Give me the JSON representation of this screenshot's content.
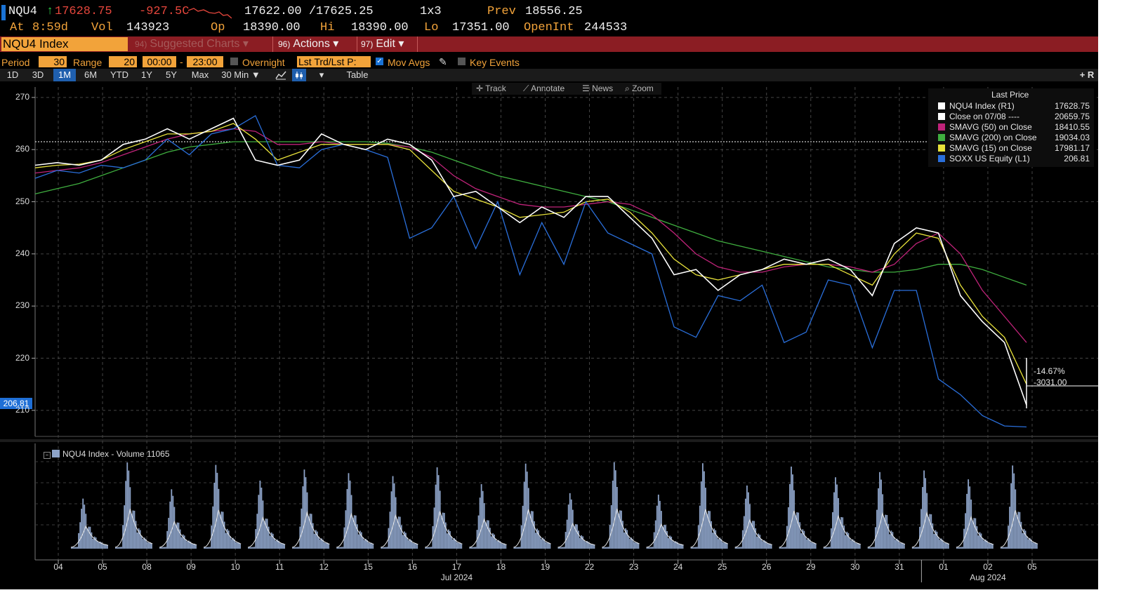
{
  "quote": {
    "ticker": "NQU4",
    "last": "17628.75",
    "change": "-927.5C",
    "bid_ask": "17622.00 /17625.25",
    "size": "1x3",
    "prev_label": "Prev",
    "prev": "18556.25",
    "at_label": "At",
    "at_time": "8:59d",
    "vol_label": "Vol",
    "vol": "143923",
    "op_label": "Op",
    "op": "18390.00",
    "hi_label": "Hi",
    "hi": "18390.00",
    "lo_label": "Lo",
    "lo": "17351.00",
    "oi_label": "OpenInt",
    "oi": "244533"
  },
  "toolbar": {
    "security": "NQU4 Index",
    "suggested_num": "94)",
    "suggested": "Suggested Charts",
    "actions_num": "96)",
    "actions": "Actions",
    "edit_num": "97)",
    "edit": "Edit"
  },
  "settings": {
    "period_label": "Period",
    "period_value": "30",
    "range_label": "Range",
    "range_value": "20",
    "time_from": "00:00",
    "time_to": "23:00",
    "overnight_label": "Overnight",
    "lst_trd": "Lst Trd/Lst P:",
    "mov_avgs_label": "Mov Avgs",
    "key_events_label": "Key Events"
  },
  "ranges": {
    "items": [
      "1D",
      "3D",
      "1M",
      "6M",
      "YTD",
      "1Y",
      "5Y",
      "Max"
    ],
    "selected": "1M",
    "interval": "30 Min",
    "table": "Table",
    "plus": "+ R"
  },
  "chart_tools": {
    "track": "Track",
    "annotate": "Annotate",
    "news": "News",
    "zoom": "Zoom"
  },
  "legend": {
    "title": "Last Price",
    "items": [
      {
        "name": "NQU4 Index  (R1)",
        "value": "17628.75",
        "color": "#ffffff"
      },
      {
        "name": "Close on 07/08 ----",
        "value": "20659.75",
        "color": "#ffffff"
      },
      {
        "name": "SMAVG (50)  on Close",
        "value": "18410.55",
        "color": "#c0237a"
      },
      {
        "name": "SMAVG (200)  on Close",
        "value": "19034.03",
        "color": "#3fae3f"
      },
      {
        "name": "SMAVG (15)  on Close",
        "value": "17981.17",
        "color": "#e8e23a"
      },
      {
        "name": "SOXX US Equity  (L1)",
        "value": "206.81",
        "color": "#2a6fdb"
      }
    ]
  },
  "annotations": {
    "pct": "-14.67%",
    "diff": "-3031.00",
    "last_tag": "206.81"
  },
  "volume_panel": {
    "label": "NQU4 Index - Volume 11065"
  },
  "chart_data": {
    "type": "line",
    "ylim": [
      205,
      272
    ],
    "yticks": [
      210,
      220,
      230,
      240,
      250,
      260,
      270
    ],
    "xticks": [
      "04",
      "05",
      "08",
      "09",
      "10",
      "11",
      "12",
      "15",
      "16",
      "17",
      "18",
      "19",
      "22",
      "23",
      "24",
      "25",
      "26",
      "29",
      "30",
      "31",
      "01",
      "02",
      "05"
    ],
    "month_labels": [
      {
        "label": "Jul 2024",
        "under": "17"
      },
      {
        "label": "Aug 2024",
        "under": "02"
      }
    ],
    "close_reference_level": 261.5,
    "series": [
      {
        "name": "SOXX US Equity (L1)",
        "color": "#2a6fdb",
        "values": [
          254.5,
          256,
          255.5,
          257,
          256.5,
          258,
          262,
          259,
          263,
          264,
          266.5,
          257,
          256.5,
          260,
          261,
          260,
          258.5,
          243,
          245,
          251,
          241,
          250,
          236,
          246,
          238,
          250,
          244,
          242,
          240,
          226,
          224,
          232,
          231,
          234,
          223,
          225,
          235,
          234,
          222,
          233,
          233,
          216,
          213,
          209,
          207,
          206.81
        ]
      },
      {
        "name": "NQU4 Index (R1)",
        "color": "#ffffff",
        "values": [
          257,
          257.5,
          257,
          258,
          261,
          262,
          264,
          262,
          264,
          266,
          258,
          257,
          258,
          263,
          261,
          260,
          262,
          261,
          258,
          251,
          252,
          249,
          246,
          249,
          247,
          251,
          251,
          247,
          243,
          236,
          237,
          233,
          236,
          237,
          239,
          238,
          239,
          237,
          232,
          242,
          245,
          244,
          232,
          227,
          223,
          211
        ]
      },
      {
        "name": "SMAVG (15) on Close",
        "color": "#e8e23a",
        "values": [
          256.5,
          257,
          257.2,
          258,
          260,
          261.5,
          263,
          263,
          263.5,
          265,
          262,
          258,
          259.5,
          261,
          261,
          261,
          261,
          260,
          256,
          252,
          250.5,
          249,
          247,
          247.5,
          248,
          250,
          250.5,
          248,
          244,
          239,
          236,
          235,
          236,
          237,
          238,
          238,
          238,
          236,
          234,
          240,
          244,
          243,
          234,
          228,
          224,
          215
        ]
      },
      {
        "name": "SMAVG (50) on Close",
        "color": "#c0237a",
        "values": [
          255.5,
          256,
          256.5,
          257.5,
          259,
          260.5,
          262,
          263,
          263.5,
          264,
          263.5,
          261,
          261,
          261.5,
          261,
          261,
          261,
          260.5,
          258.5,
          255,
          252.5,
          251,
          249.5,
          249,
          249,
          249.5,
          250,
          249.5,
          247.5,
          244,
          240,
          237.5,
          236.5,
          236.5,
          237.5,
          238,
          238,
          237.5,
          236.5,
          238,
          242,
          244,
          240,
          233,
          228,
          223
        ]
      },
      {
        "name": "SMAVG (200) on Close",
        "color": "#3fae3f",
        "values": [
          251.5,
          252.5,
          253.5,
          255,
          256.5,
          258,
          259.5,
          260.5,
          261,
          261.5,
          261.5,
          261.5,
          261.5,
          261.5,
          261.5,
          261.5,
          261.2,
          260.5,
          259.5,
          258,
          256.5,
          255,
          254,
          253,
          252,
          251,
          250,
          248.5,
          247,
          245.5,
          244,
          242.5,
          241.5,
          240.5,
          239.5,
          238.5,
          237.5,
          237,
          236.5,
          236.5,
          237,
          238,
          238,
          237,
          235.5,
          234
        ]
      }
    ]
  }
}
